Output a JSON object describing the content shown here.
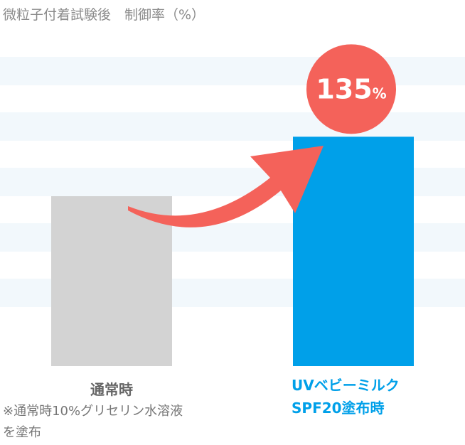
{
  "chart_data": {
    "type": "bar",
    "title": "微粒子付着試験後　制御率（%）",
    "categories": [
      "通常時",
      "UVベビーミルク\nSPF20塗布時"
    ],
    "values": [
      100,
      135
    ],
    "value_labels": [
      null,
      "135%"
    ],
    "colors": [
      "#d3d3d3",
      "#00a0e9"
    ],
    "label_color": "#f4625a",
    "note": "※通常時10%グリセリン水溶液\nを塗布"
  }
}
